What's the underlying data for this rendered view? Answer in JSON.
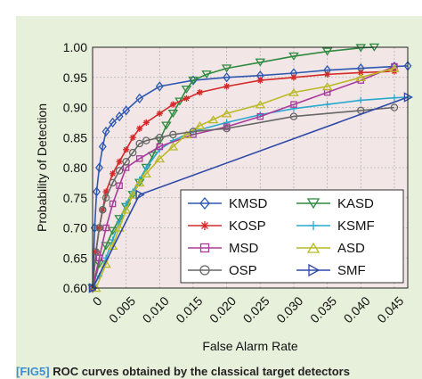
{
  "chart_data": {
    "type": "line",
    "title": "",
    "xlabel": "False Alarm Rate",
    "ylabel": "Probability of Detection",
    "xlim": [
      0,
      0.047
    ],
    "ylim": [
      0.6,
      1.0
    ],
    "xticks": [
      "0",
      "0.005",
      "0.010",
      "0.015",
      "0.020",
      "0.025",
      "0.030",
      "0.035",
      "0.040",
      "0.045"
    ],
    "xtick_values": [
      0,
      0.005,
      0.01,
      0.015,
      0.02,
      0.025,
      0.03,
      0.035,
      0.04,
      0.045
    ],
    "yticks": [
      "0.60",
      "0.65",
      "0.70",
      "0.75",
      "0.80",
      "0.85",
      "0.90",
      "0.95",
      "1.00"
    ],
    "ytick_values": [
      0.6,
      0.65,
      0.7,
      0.75,
      0.8,
      0.85,
      0.9,
      0.95,
      1.0
    ],
    "grid": true,
    "plot_background": "#f3e6e6",
    "legend_position": "lower-right",
    "series": [
      {
        "name": "KMSD",
        "color": "#2e59b0",
        "marker": "diamond",
        "x": [
          0,
          0.0003,
          0.0006,
          0.001,
          0.0015,
          0.002,
          0.003,
          0.004,
          0.005,
          0.007,
          0.01,
          0.015,
          0.02,
          0.025,
          0.03,
          0.035,
          0.04,
          0.045,
          0.047
        ],
        "y": [
          0.6,
          0.7,
          0.76,
          0.8,
          0.835,
          0.86,
          0.875,
          0.885,
          0.895,
          0.915,
          0.935,
          0.945,
          0.95,
          0.953,
          0.957,
          0.962,
          0.965,
          0.968,
          0.969
        ]
      },
      {
        "name": "KASD",
        "color": "#2e8b3f",
        "marker": "triangle-down",
        "x": [
          0,
          0.001,
          0.002,
          0.003,
          0.004,
          0.005,
          0.006,
          0.007,
          0.008,
          0.009,
          0.01,
          0.011,
          0.012,
          0.013,
          0.014,
          0.015,
          0.017,
          0.02,
          0.025,
          0.03,
          0.035,
          0.04,
          0.042
        ],
        "y": [
          0.6,
          0.64,
          0.67,
          0.695,
          0.715,
          0.735,
          0.755,
          0.775,
          0.8,
          0.82,
          0.845,
          0.87,
          0.89,
          0.91,
          0.93,
          0.945,
          0.955,
          0.965,
          0.975,
          0.985,
          0.993,
          0.999,
          1.0
        ]
      },
      {
        "name": "KOSP",
        "color": "#d42a2a",
        "marker": "asterisk",
        "x": [
          0,
          0.0005,
          0.001,
          0.0015,
          0.002,
          0.003,
          0.004,
          0.005,
          0.006,
          0.007,
          0.008,
          0.01,
          0.012,
          0.014,
          0.016,
          0.02,
          0.025,
          0.03,
          0.035,
          0.04,
          0.045
        ],
        "y": [
          0.6,
          0.66,
          0.7,
          0.73,
          0.76,
          0.79,
          0.81,
          0.83,
          0.85,
          0.865,
          0.875,
          0.89,
          0.905,
          0.915,
          0.925,
          0.935,
          0.945,
          0.95,
          0.955,
          0.958,
          0.96
        ]
      },
      {
        "name": "KSMF",
        "color": "#29a9cf",
        "marker": "plus",
        "x": [
          0,
          0.001,
          0.002,
          0.003,
          0.004,
          0.005,
          0.006,
          0.007,
          0.008,
          0.01,
          0.012,
          0.015,
          0.02,
          0.025,
          0.03,
          0.035,
          0.04,
          0.045,
          0.047
        ],
        "y": [
          0.6,
          0.62,
          0.65,
          0.68,
          0.71,
          0.74,
          0.76,
          0.78,
          0.8,
          0.83,
          0.845,
          0.86,
          0.875,
          0.888,
          0.898,
          0.905,
          0.912,
          0.916,
          0.917
        ]
      },
      {
        "name": "MSD",
        "color": "#a83a9c",
        "marker": "square",
        "x": [
          0,
          0.001,
          0.002,
          0.003,
          0.004,
          0.005,
          0.007,
          0.01,
          0.015,
          0.02,
          0.025,
          0.03,
          0.035,
          0.04,
          0.045
        ],
        "y": [
          0.6,
          0.65,
          0.7,
          0.74,
          0.77,
          0.8,
          0.815,
          0.835,
          0.855,
          0.868,
          0.885,
          0.905,
          0.925,
          0.945,
          0.968
        ]
      },
      {
        "name": "ASD",
        "color": "#b9ba26",
        "marker": "triangle-up",
        "x": [
          0.0005,
          0.002,
          0.003,
          0.004,
          0.005,
          0.006,
          0.007,
          0.008,
          0.01,
          0.012,
          0.014,
          0.016,
          0.018,
          0.02,
          0.025,
          0.03,
          0.035,
          0.04,
          0.045
        ],
        "y": [
          0.6,
          0.64,
          0.67,
          0.7,
          0.73,
          0.755,
          0.775,
          0.79,
          0.815,
          0.835,
          0.855,
          0.87,
          0.88,
          0.89,
          0.905,
          0.925,
          0.935,
          0.95,
          0.965
        ]
      },
      {
        "name": "OSP",
        "color": "#666666",
        "marker": "circle",
        "x": [
          0,
          0.0005,
          0.001,
          0.0015,
          0.002,
          0.003,
          0.004,
          0.005,
          0.006,
          0.007,
          0.008,
          0.01,
          0.012,
          0.015,
          0.02,
          0.03,
          0.04,
          0.045
        ],
        "y": [
          0.6,
          0.66,
          0.7,
          0.73,
          0.75,
          0.775,
          0.795,
          0.81,
          0.825,
          0.84,
          0.845,
          0.85,
          0.855,
          0.86,
          0.865,
          0.885,
          0.895,
          0.9
        ]
      },
      {
        "name": "SMF",
        "color": "#2e4aa8",
        "marker": "triangle-right",
        "x": [
          0,
          0.007,
          0.047
        ],
        "y": [
          0.6,
          0.755,
          0.917
        ]
      }
    ]
  },
  "caption": {
    "tag": "[FIG5]",
    "text": "ROC curves obtained by the classical target detectors"
  }
}
